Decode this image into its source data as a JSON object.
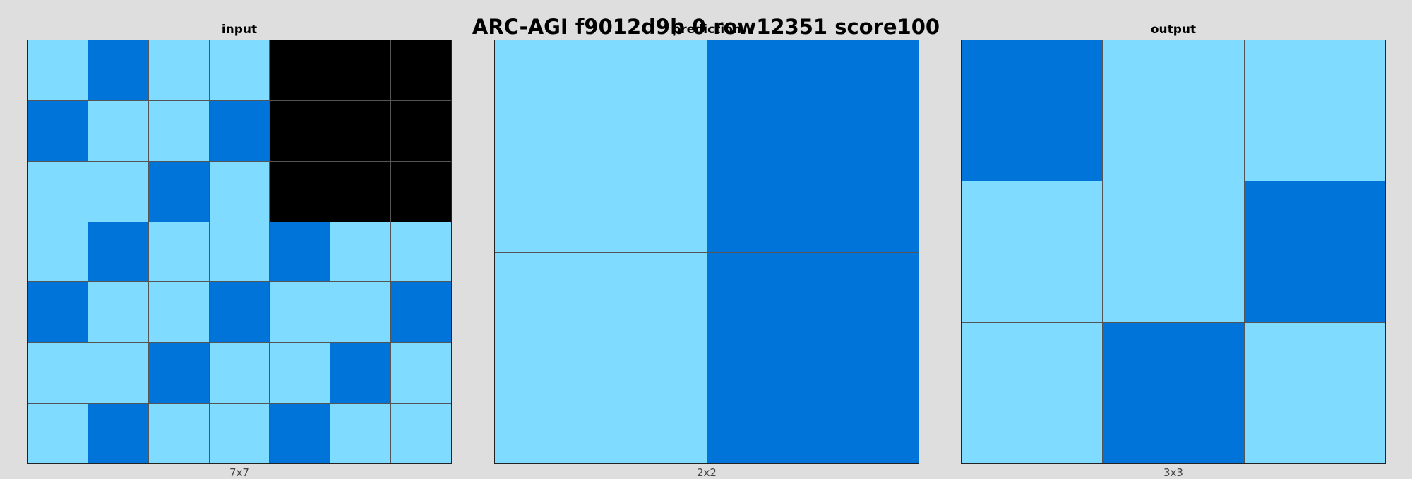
{
  "title": "ARC-AGI f9012d9b 0 row12351 score100",
  "palette": {
    "0": "#000000",
    "1": "#0074d9",
    "8": "#7fdbff"
  },
  "panels": [
    {
      "label": "input",
      "dims": "7x7",
      "grid": [
        [
          8,
          1,
          8,
          8,
          0,
          0,
          0
        ],
        [
          1,
          8,
          8,
          1,
          0,
          0,
          0
        ],
        [
          8,
          8,
          1,
          8,
          0,
          0,
          0
        ],
        [
          8,
          1,
          8,
          8,
          1,
          8,
          8
        ],
        [
          1,
          8,
          8,
          1,
          8,
          8,
          1
        ],
        [
          8,
          8,
          1,
          8,
          8,
          1,
          8
        ],
        [
          8,
          1,
          8,
          8,
          1,
          8,
          8
        ]
      ]
    },
    {
      "label": "prediction",
      "dims": "2x2",
      "grid": [
        [
          8,
          1
        ],
        [
          8,
          1
        ]
      ]
    },
    {
      "label": "output",
      "dims": "3x3",
      "grid": [
        [
          1,
          8,
          8
        ],
        [
          8,
          8,
          1
        ],
        [
          8,
          1,
          8
        ]
      ]
    }
  ]
}
